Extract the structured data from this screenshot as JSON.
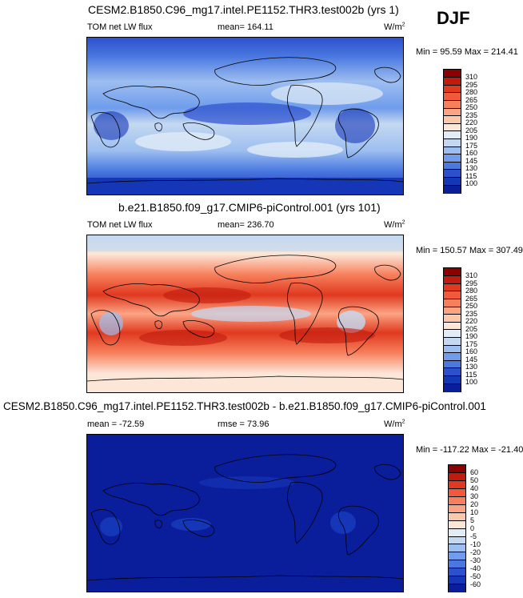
{
  "season": "DJF",
  "units_base": "W/m",
  "units_exp": "2",
  "chart_data": [
    {
      "type": "heatmap",
      "title": "CESM2.B1850.C96_mg17.intel.PE1152.THR3.test002b (yrs 1)",
      "variable": "TOM net LW flux",
      "stat": "mean= 164.11",
      "minmax": "Min =  95.59 Max = 214.41",
      "min": 95.59,
      "max": 214.41,
      "mean": 164.11,
      "levels": [
        "310",
        "295",
        "280",
        "265",
        "250",
        "235",
        "220",
        "205",
        "190",
        "175",
        "160",
        "145",
        "130",
        "115",
        "100"
      ],
      "colors": [
        "#8b0000",
        "#c21b0e",
        "#e0391f",
        "#f05a3a",
        "#f7805c",
        "#fba484",
        "#fdc7ab",
        "#fce6d8",
        "#e1ecf7",
        "#c4d9f1",
        "#9dbef0",
        "#6f9cec",
        "#4a78e0",
        "#2d50cf",
        "#1636b8",
        "#0a1e9c"
      ]
    },
    {
      "type": "heatmap",
      "title": "b.e21.B1850.f09_g17.CMIP6-piControl.001 (yrs 101)",
      "variable": "TOM net LW flux",
      "stat": "mean= 236.70",
      "minmax": "Min = 150.57 Max = 307.49",
      "min": 150.57,
      "max": 307.49,
      "mean": 236.7,
      "levels": [
        "310",
        "295",
        "280",
        "265",
        "250",
        "235",
        "220",
        "205",
        "190",
        "175",
        "160",
        "145",
        "130",
        "115",
        "100"
      ],
      "colors": [
        "#8b0000",
        "#c21b0e",
        "#e0391f",
        "#f05a3a",
        "#f7805c",
        "#fba484",
        "#fdc7ab",
        "#fce6d8",
        "#e1ecf7",
        "#c4d9f1",
        "#9dbef0",
        "#6f9cec",
        "#4a78e0",
        "#2d50cf",
        "#1636b8",
        "#0a1e9c"
      ]
    },
    {
      "type": "heatmap",
      "title": "CESM2.B1850.C96_mg17.intel.PE1152.THR3.test002b - b.e21.B1850.f09_g17.CMIP6-piControl.001",
      "stat_left": "mean = -72.59",
      "stat": "rmse =  73.96",
      "minmax": "Min = -117.22 Max = -21.40",
      "min": -117.22,
      "max": -21.4,
      "mean": -72.59,
      "rmse": 73.96,
      "levels": [
        "60",
        "50",
        "40",
        "30",
        "20",
        "10",
        "5",
        "0",
        "-5",
        "-10",
        "-20",
        "-30",
        "-40",
        "-50",
        "-60"
      ],
      "colors": [
        "#8b0000",
        "#c21b0e",
        "#e0391f",
        "#f05a3a",
        "#f7805c",
        "#fba484",
        "#fdc7ab",
        "#fce6d8",
        "#e1ecf7",
        "#c4d9f1",
        "#9dbef0",
        "#6f9cec",
        "#4a78e0",
        "#2d50cf",
        "#1636b8",
        "#0a1e9c"
      ]
    }
  ]
}
